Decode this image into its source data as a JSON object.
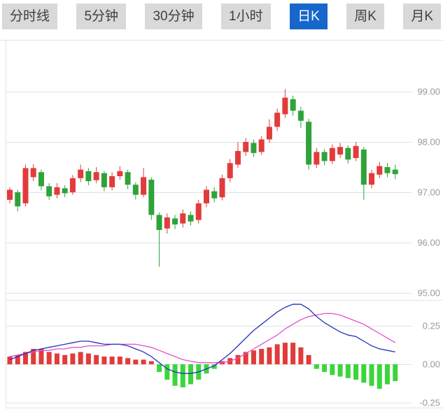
{
  "tabs": {
    "items": [
      {
        "label": "分时线",
        "active": false
      },
      {
        "label": "5分钟",
        "active": false
      },
      {
        "label": "30分钟",
        "active": false
      },
      {
        "label": "1小时",
        "active": false
      },
      {
        "label": "日K",
        "active": true
      },
      {
        "label": "周K",
        "active": false
      },
      {
        "label": "月K",
        "active": false
      }
    ]
  },
  "chart_data": {
    "type": "candlestick",
    "title": "",
    "panes": [
      "price-kline",
      "macd-indicator"
    ],
    "legend": [],
    "grid": true,
    "price_axis": {
      "side": "right",
      "range": [
        94.85,
        99.65
      ],
      "ticks": [
        {
          "value": 99,
          "label": "99.00"
        },
        {
          "value": 98,
          "label": "98.00"
        },
        {
          "value": 97,
          "label": "97.00"
        },
        {
          "value": 96,
          "label": "96.00"
        },
        {
          "value": 95,
          "label": "95.00"
        }
      ]
    },
    "macd_axis": {
      "side": "right",
      "range": [
        -0.29,
        0.4
      ],
      "ticks": [
        {
          "value": 0.25,
          "label": "0.25"
        },
        {
          "value": 0,
          "label": "0.00"
        },
        {
          "value": -0.25,
          "label": "-0.25"
        }
      ]
    },
    "candles": {
      "format": [
        "open",
        "close",
        "low",
        "high"
      ],
      "up_means": "close >= open (red, Chinese convention)",
      "values": [
        [
          96.85,
          97.05,
          96.78,
          97.1
        ],
        [
          97.0,
          96.72,
          96.62,
          97.05
        ],
        [
          96.78,
          97.48,
          96.72,
          97.55
        ],
        [
          97.3,
          97.48,
          97.22,
          97.56
        ],
        [
          97.4,
          97.12,
          97.04,
          97.45
        ],
        [
          97.12,
          96.92,
          96.85,
          97.18
        ],
        [
          96.95,
          97.1,
          96.88,
          97.18
        ],
        [
          97.08,
          96.98,
          96.9,
          97.14
        ],
        [
          97.0,
          97.28,
          96.95,
          97.34
        ],
        [
          97.28,
          97.45,
          97.2,
          97.55
        ],
        [
          97.42,
          97.22,
          97.14,
          97.48
        ],
        [
          97.24,
          97.4,
          97.18,
          97.5
        ],
        [
          97.38,
          97.1,
          97.02,
          97.42
        ],
        [
          97.1,
          97.32,
          97.04,
          97.4
        ],
        [
          97.32,
          97.42,
          97.25,
          97.52
        ],
        [
          97.4,
          97.15,
          97.06,
          97.45
        ],
        [
          97.15,
          96.95,
          96.86,
          97.2
        ],
        [
          96.95,
          97.3,
          96.9,
          97.48
        ],
        [
          97.25,
          96.55,
          96.45,
          97.3
        ],
        [
          96.55,
          96.25,
          95.52,
          96.6
        ],
        [
          96.28,
          96.5,
          96.18,
          96.58
        ],
        [
          96.48,
          96.36,
          96.27,
          96.55
        ],
        [
          96.38,
          96.58,
          96.3,
          96.66
        ],
        [
          96.55,
          96.42,
          96.34,
          96.62
        ],
        [
          96.45,
          96.78,
          96.38,
          96.85
        ],
        [
          96.78,
          97.05,
          96.7,
          97.12
        ],
        [
          97.02,
          96.88,
          96.8,
          97.1
        ],
        [
          96.9,
          97.28,
          96.84,
          97.35
        ],
        [
          97.28,
          97.58,
          97.2,
          97.66
        ],
        [
          97.55,
          97.82,
          97.48,
          98.0
        ],
        [
          97.8,
          98.0,
          97.72,
          98.08
        ],
        [
          97.98,
          97.78,
          97.7,
          98.05
        ],
        [
          97.8,
          98.05,
          97.74,
          98.12
        ],
        [
          98.05,
          98.3,
          97.98,
          98.45
        ],
        [
          98.3,
          98.58,
          98.22,
          98.66
        ],
        [
          98.55,
          98.88,
          98.48,
          99.05
        ],
        [
          98.85,
          98.62,
          98.52,
          98.92
        ],
        [
          98.62,
          98.42,
          98.28,
          98.7
        ],
        [
          98.4,
          97.55,
          97.45,
          98.46
        ],
        [
          97.55,
          97.8,
          97.48,
          97.88
        ],
        [
          97.8,
          97.62,
          97.54,
          97.86
        ],
        [
          97.62,
          97.88,
          97.56,
          97.95
        ],
        [
          97.75,
          97.9,
          97.68,
          97.98
        ],
        [
          97.88,
          97.65,
          97.57,
          97.93
        ],
        [
          97.68,
          97.92,
          97.62,
          98.0
        ],
        [
          97.85,
          97.15,
          96.85,
          97.9
        ],
        [
          97.15,
          97.38,
          97.08,
          97.45
        ],
        [
          97.35,
          97.52,
          97.28,
          97.6
        ],
        [
          97.5,
          97.38,
          97.3,
          97.58
        ],
        [
          97.45,
          97.36,
          97.26,
          97.55
        ]
      ]
    },
    "macd": {
      "histogram": [
        0.05,
        0.06,
        0.08,
        0.1,
        0.1,
        0.08,
        0.07,
        0.06,
        0.07,
        0.08,
        0.07,
        0.06,
        0.05,
        0.05,
        0.05,
        0.04,
        0.03,
        0.03,
        0.02,
        -0.05,
        -0.1,
        -0.14,
        -0.15,
        -0.13,
        -0.1,
        -0.06,
        -0.03,
        0.02,
        0.04,
        0.06,
        0.08,
        0.09,
        0.1,
        0.11,
        0.13,
        0.14,
        0.14,
        0.11,
        0.06,
        -0.03,
        -0.05,
        -0.07,
        -0.08,
        -0.09,
        -0.1,
        -0.12,
        -0.14,
        -0.16,
        -0.13,
        -0.11
      ],
      "dif": [
        0.03,
        0.05,
        0.07,
        0.09,
        0.1,
        0.11,
        0.12,
        0.13,
        0.14,
        0.15,
        0.15,
        0.14,
        0.13,
        0.13,
        0.13,
        0.12,
        0.1,
        0.08,
        0.05,
        0.01,
        -0.03,
        -0.05,
        -0.06,
        -0.06,
        -0.05,
        -0.03,
        -0.01,
        0.03,
        0.07,
        0.12,
        0.17,
        0.22,
        0.26,
        0.3,
        0.34,
        0.37,
        0.39,
        0.39,
        0.36,
        0.31,
        0.27,
        0.24,
        0.21,
        0.19,
        0.18,
        0.15,
        0.12,
        0.1,
        0.09,
        0.08
      ],
      "dea": [
        0.05,
        0.06,
        0.07,
        0.08,
        0.09,
        0.09,
        0.1,
        0.1,
        0.11,
        0.11,
        0.12,
        0.12,
        0.12,
        0.13,
        0.13,
        0.13,
        0.13,
        0.12,
        0.11,
        0.09,
        0.07,
        0.05,
        0.03,
        0.02,
        0.01,
        0.01,
        0.01,
        0.01,
        0.02,
        0.04,
        0.07,
        0.1,
        0.13,
        0.16,
        0.19,
        0.23,
        0.26,
        0.29,
        0.31,
        0.32,
        0.33,
        0.33,
        0.32,
        0.3,
        0.28,
        0.26,
        0.23,
        0.2,
        0.17,
        0.14
      ]
    },
    "colors": {
      "up": "#e23b3b",
      "down": "#2fa33a",
      "macd_up": "#e23b3b",
      "macd_down": "#3bd53b",
      "dif_line": "#2433b5",
      "dea_line": "#e051cc",
      "grid": "#e2e2e2",
      "axis_text": "#999999",
      "active_tab_bg": "#1667cb",
      "inactive_tab_bg": "#d9d9d9"
    }
  }
}
